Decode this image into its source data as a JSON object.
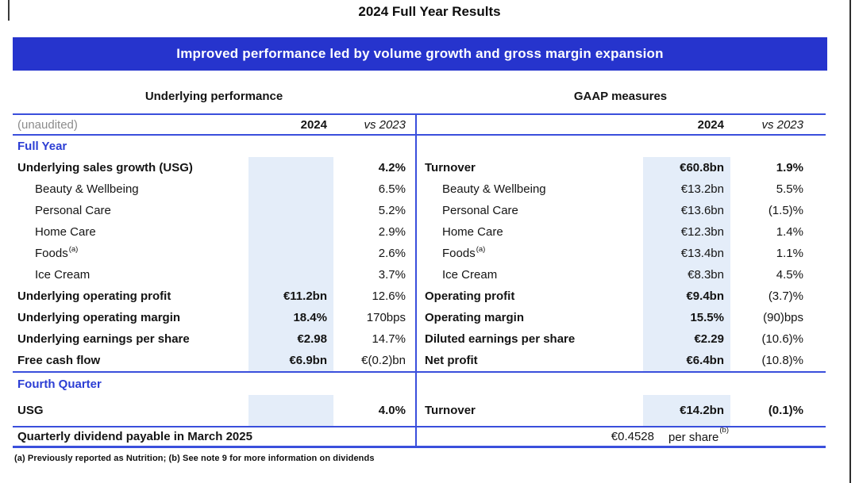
{
  "title": "2024 Full Year Results",
  "banner": {
    "text": "Improved performance led by volume growth and gross margin expansion"
  },
  "colors": {
    "banner_bg": "#2634cd",
    "section_heading_blue": "#2c3ed4",
    "table_line_blue": "#3a4fdc",
    "column_shade_blue": "#e4edf9",
    "unaudited_gray": "#8c8c8c"
  },
  "tables": {
    "left_title": "Underlying performance",
    "right_title": "GAAP measures",
    "unaudited_label": "(unaudited)",
    "col_2024": "2024",
    "col_vs": "vs 2023"
  },
  "sections": [
    {
      "heading": "Full Year",
      "rows": [
        {
          "left": {
            "label": "Underlying sales growth (USG)",
            "sup": "",
            "bold": true,
            "indent": false,
            "y2024": "",
            "y2024_bold": false,
            "vs": "4.2%",
            "vs_bold": true
          },
          "right": {
            "label": "Turnover",
            "sup": "",
            "bold": true,
            "indent": false,
            "y2024": "€60.8bn",
            "y2024_bold": true,
            "vs": "1.9%",
            "vs_bold": true
          }
        },
        {
          "left": {
            "label": "Beauty & Wellbeing",
            "sup": "",
            "bold": false,
            "indent": true,
            "y2024": "",
            "y2024_bold": false,
            "vs": "6.5%",
            "vs_bold": false
          },
          "right": {
            "label": "Beauty & Wellbeing",
            "sup": "",
            "bold": false,
            "indent": true,
            "y2024": "€13.2bn",
            "y2024_bold": false,
            "vs": "5.5%",
            "vs_bold": false
          }
        },
        {
          "left": {
            "label": "Personal Care",
            "sup": "",
            "bold": false,
            "indent": true,
            "y2024": "",
            "y2024_bold": false,
            "vs": "5.2%",
            "vs_bold": false
          },
          "right": {
            "label": "Personal Care",
            "sup": "",
            "bold": false,
            "indent": true,
            "y2024": "€13.6bn",
            "y2024_bold": false,
            "vs": "(1.5)%",
            "vs_bold": false
          }
        },
        {
          "left": {
            "label": "Home Care",
            "sup": "",
            "bold": false,
            "indent": true,
            "y2024": "",
            "y2024_bold": false,
            "vs": "2.9%",
            "vs_bold": false
          },
          "right": {
            "label": "Home Care",
            "sup": "",
            "bold": false,
            "indent": true,
            "y2024": "€12.3bn",
            "y2024_bold": false,
            "vs": "1.4%",
            "vs_bold": false
          }
        },
        {
          "left": {
            "label": "Foods",
            "sup": "(a)",
            "bold": false,
            "indent": true,
            "y2024": "",
            "y2024_bold": false,
            "vs": "2.6%",
            "vs_bold": false
          },
          "right": {
            "label": "Foods",
            "sup": "(a)",
            "bold": false,
            "indent": true,
            "y2024": "€13.4bn",
            "y2024_bold": false,
            "vs": "1.1%",
            "vs_bold": false
          }
        },
        {
          "left": {
            "label": "Ice Cream",
            "sup": "",
            "bold": false,
            "indent": true,
            "y2024": "",
            "y2024_bold": false,
            "vs": "3.7%",
            "vs_bold": false
          },
          "right": {
            "label": "Ice Cream",
            "sup": "",
            "bold": false,
            "indent": true,
            "y2024": "€8.3bn",
            "y2024_bold": false,
            "vs": "4.5%",
            "vs_bold": false
          }
        },
        {
          "left": {
            "label": "Underlying operating profit",
            "sup": "",
            "bold": true,
            "indent": false,
            "y2024": "€11.2bn",
            "y2024_bold": true,
            "vs": "12.6%",
            "vs_bold": false
          },
          "right": {
            "label": "Operating profit",
            "sup": "",
            "bold": true,
            "indent": false,
            "y2024": "€9.4bn",
            "y2024_bold": true,
            "vs": "(3.7)%",
            "vs_bold": false
          }
        },
        {
          "left": {
            "label": "Underlying operating margin",
            "sup": "",
            "bold": true,
            "indent": false,
            "y2024": "18.4%",
            "y2024_bold": true,
            "vs": "170bps",
            "vs_bold": false
          },
          "right": {
            "label": "Operating margin",
            "sup": "",
            "bold": true,
            "indent": false,
            "y2024": "15.5%",
            "y2024_bold": true,
            "vs": "(90)bps",
            "vs_bold": false
          }
        },
        {
          "left": {
            "label": "Underlying earnings per share",
            "sup": "",
            "bold": true,
            "indent": false,
            "y2024": "€2.98",
            "y2024_bold": true,
            "vs": "14.7%",
            "vs_bold": false
          },
          "right": {
            "label": "Diluted earnings per share",
            "sup": "",
            "bold": true,
            "indent": false,
            "y2024": "€2.29",
            "y2024_bold": true,
            "vs": "(10.6)%",
            "vs_bold": false
          }
        },
        {
          "left": {
            "label": "Free cash flow",
            "sup": "",
            "bold": true,
            "indent": false,
            "y2024": "€6.9bn",
            "y2024_bold": true,
            "vs": "€(0.2)bn",
            "vs_bold": false
          },
          "right": {
            "label": "Net profit",
            "sup": "",
            "bold": true,
            "indent": false,
            "y2024": "€6.4bn",
            "y2024_bold": true,
            "vs": "(10.8)%",
            "vs_bold": false
          }
        }
      ]
    },
    {
      "heading": "Fourth Quarter",
      "rows": [
        {
          "left": {
            "label": "USG",
            "sup": "",
            "bold": true,
            "indent": false,
            "y2024": "",
            "y2024_bold": false,
            "vs": "4.0%",
            "vs_bold": true
          },
          "right": {
            "label": "Turnover",
            "sup": "",
            "bold": true,
            "indent": false,
            "y2024": "€14.2bn",
            "y2024_bold": true,
            "vs": "(0.1)%",
            "vs_bold": true
          }
        }
      ]
    }
  ],
  "dividend": {
    "label": "Quarterly dividend payable in March 2025",
    "value": "€0.4528",
    "unit": "per share",
    "unit_sup": "(b)"
  },
  "footnote": "(a) Previously reported as Nutrition; (b) See note 9 for more information on dividends"
}
